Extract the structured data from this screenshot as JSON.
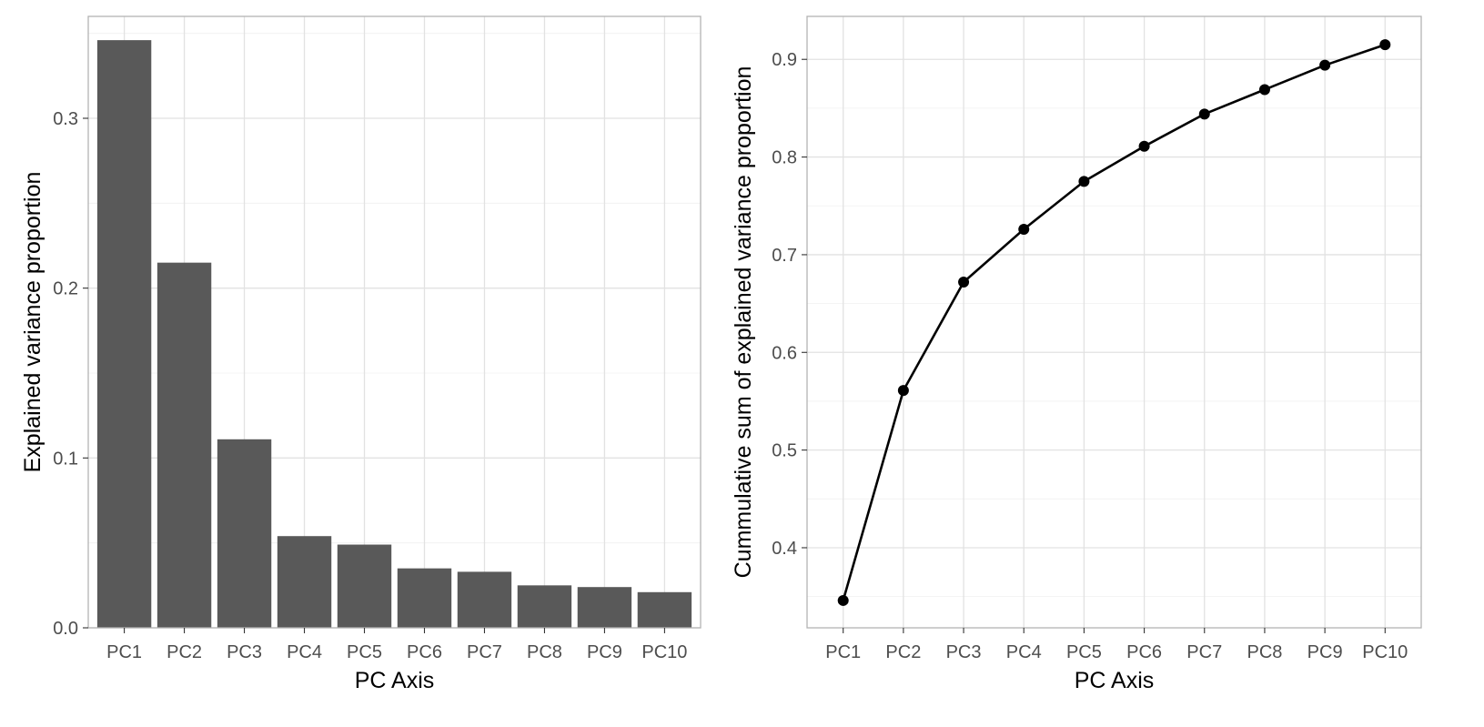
{
  "chart_data": [
    {
      "type": "bar",
      "categories": [
        "PC1",
        "PC2",
        "PC3",
        "PC4",
        "PC5",
        "PC6",
        "PC7",
        "PC8",
        "PC9",
        "PC10"
      ],
      "values": [
        0.346,
        0.215,
        0.111,
        0.054,
        0.049,
        0.035,
        0.033,
        0.025,
        0.024,
        0.021
      ],
      "xlabel": "PC Axis",
      "ylabel": "Explained variance proportion",
      "ylim": [
        0.0,
        0.36
      ],
      "yticks": [
        "0.0",
        "0.1",
        "0.2",
        "0.3"
      ],
      "bar_color": "#595959",
      "grid": true
    },
    {
      "type": "line",
      "categories": [
        "PC1",
        "PC2",
        "PC3",
        "PC4",
        "PC5",
        "PC6",
        "PC7",
        "PC8",
        "PC9",
        "PC10"
      ],
      "values": [
        0.346,
        0.561,
        0.672,
        0.726,
        0.775,
        0.811,
        0.844,
        0.869,
        0.894,
        0.915
      ],
      "xlabel": "PC Axis",
      "ylabel": "Cummulative sum of explained variance proportion",
      "ylim": [
        0.318,
        0.944
      ],
      "yticks": [
        "0.4",
        "0.5",
        "0.6",
        "0.7",
        "0.8",
        "0.9"
      ],
      "line_color": "#000000",
      "markers": true,
      "grid": true
    }
  ]
}
